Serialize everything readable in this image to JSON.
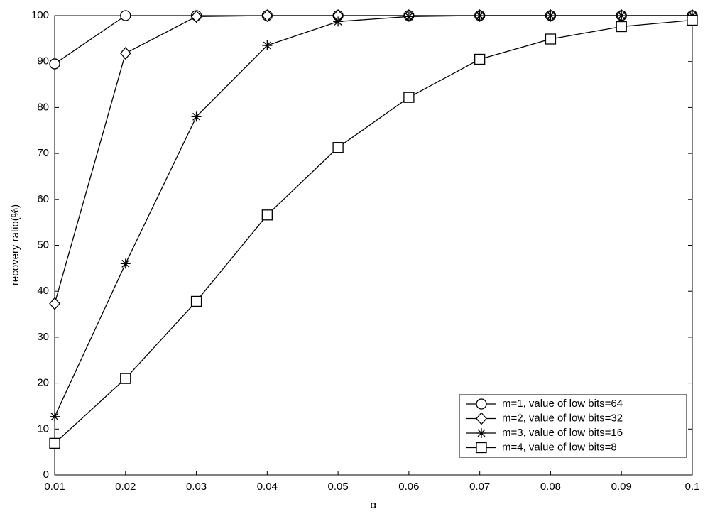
{
  "chart_data": {
    "type": "line",
    "x_label": "α",
    "y_label": "recovery ratio(%)",
    "x": [
      0.01,
      0.02,
      0.03,
      0.04,
      0.05,
      0.06,
      0.07,
      0.08,
      0.09,
      0.1
    ],
    "series": [
      {
        "name": "m=1, value of low bits=64",
        "color": "#000000",
        "marker": "circle",
        "values": [
          89.5,
          100,
          100,
          100,
          100,
          100,
          100,
          100,
          100,
          100
        ]
      },
      {
        "name": "m=2, value of low bits=32",
        "color": "#000000",
        "marker": "diamond",
        "values": [
          37.3,
          91.8,
          99.8,
          100,
          100,
          100,
          100,
          100,
          100,
          100
        ]
      },
      {
        "name": "m=3, value of low bits=16",
        "color": "#000000",
        "marker": "star",
        "values": [
          12.7,
          46,
          78,
          93.5,
          98.7,
          99.8,
          100,
          100,
          100,
          100
        ]
      },
      {
        "name": "m=4, value of low bits=8",
        "color": "#000000",
        "marker": "square",
        "values": [
          6.9,
          21,
          37.8,
          56.6,
          71.3,
          82.2,
          90.5,
          94.9,
          97.6,
          99
        ]
      }
    ],
    "xlim": [
      0.01,
      0.1
    ],
    "xticks": [
      0.01,
      0.02,
      0.03,
      0.04,
      0.05,
      0.06,
      0.07,
      0.08,
      0.09,
      0.1
    ],
    "ylim": [
      0,
      100
    ],
    "yticks": [
      0,
      10,
      20,
      30,
      40,
      50,
      60,
      70,
      80,
      90,
      100
    ],
    "grid": false,
    "legend": "lower right"
  }
}
